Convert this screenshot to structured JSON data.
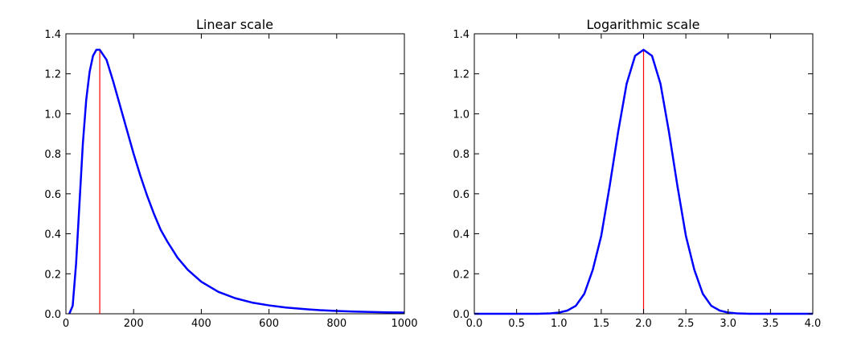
{
  "chart_data": [
    {
      "type": "line",
      "title": "Linear scale",
      "xlabel": "",
      "ylabel": "",
      "xlim": [
        0,
        1000
      ],
      "ylim": [
        0,
        1.4
      ],
      "xticks": [
        "0",
        "200",
        "400",
        "600",
        "800",
        "1000"
      ],
      "yticks": [
        "0.0",
        "0.2",
        "0.4",
        "0.6",
        "0.8",
        "1.0",
        "1.2",
        "1.4"
      ],
      "grid": false,
      "legend": "none",
      "series": [
        {
          "color": "#0000ff",
          "x": [
            10,
            20,
            30,
            40,
            50,
            60,
            70,
            80,
            90,
            100,
            120,
            140,
            160,
            180,
            200,
            220,
            240,
            260,
            280,
            300,
            330,
            360,
            400,
            450,
            500,
            550,
            600,
            650,
            700,
            750,
            800,
            850,
            900,
            950,
            1000
          ],
          "y": [
            0.0,
            0.04,
            0.25,
            0.55,
            0.85,
            1.07,
            1.21,
            1.29,
            1.32,
            1.32,
            1.27,
            1.16,
            1.04,
            0.92,
            0.8,
            0.69,
            0.59,
            0.5,
            0.42,
            0.36,
            0.28,
            0.22,
            0.16,
            0.11,
            0.078,
            0.056,
            0.042,
            0.031,
            0.024,
            0.018,
            0.014,
            0.011,
            0.009,
            0.007,
            0.006
          ]
        }
      ],
      "vline": {
        "x": 100,
        "y": 1.32,
        "color": "#ff0000"
      }
    },
    {
      "type": "line",
      "title": "Logarithmic scale",
      "xlabel": "",
      "ylabel": "",
      "xlim": [
        0,
        4.0
      ],
      "ylim": [
        0,
        1.4
      ],
      "xticks": [
        "0.0",
        "0.5",
        "1.0",
        "1.5",
        "2.0",
        "2.5",
        "3.0",
        "3.5",
        "4.0"
      ],
      "yticks": [
        "0.0",
        "0.2",
        "0.4",
        "0.6",
        "0.8",
        "1.0",
        "1.2",
        "1.4"
      ],
      "grid": false,
      "legend": "none",
      "series": [
        {
          "color": "#0000ff",
          "x": [
            0.0,
            0.25,
            0.5,
            0.75,
            0.9,
            1.0,
            1.1,
            1.2,
            1.3,
            1.4,
            1.5,
            1.6,
            1.7,
            1.8,
            1.9,
            2.0,
            2.1,
            2.2,
            2.3,
            2.4,
            2.5,
            2.6,
            2.7,
            2.8,
            2.9,
            3.0,
            3.1,
            3.25,
            3.5,
            3.75,
            4.0
          ],
          "y": [
            0.0,
            0.0,
            0.0,
            0.0,
            0.002,
            0.006,
            0.016,
            0.04,
            0.1,
            0.22,
            0.39,
            0.64,
            0.91,
            1.15,
            1.29,
            1.32,
            1.29,
            1.15,
            0.91,
            0.64,
            0.39,
            0.22,
            0.1,
            0.04,
            0.016,
            0.006,
            0.002,
            0.0,
            0.0,
            0.0,
            0.0
          ]
        }
      ],
      "vline": {
        "x": 2.0,
        "y": 1.32,
        "color": "#ff0000"
      }
    }
  ]
}
